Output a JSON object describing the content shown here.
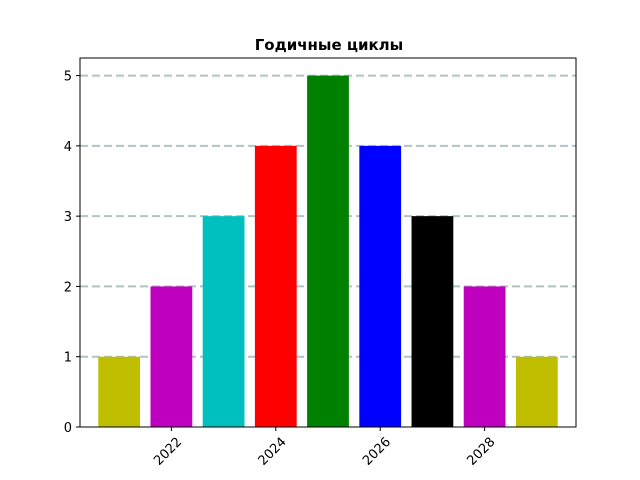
{
  "chart_data": {
    "type": "bar",
    "title": "Годичные циклы",
    "xlabel": "",
    "ylabel": "",
    "x": [
      2021,
      2022,
      2023,
      2024,
      2025,
      2026,
      2027,
      2028,
      2029
    ],
    "values": [
      1,
      2,
      3,
      4,
      5,
      4,
      3,
      2,
      1
    ],
    "colors": [
      "#bfbf00",
      "#bf00bf",
      "#00bfbf",
      "#ff0000",
      "#008000",
      "#0000ff",
      "#000000",
      "#bf00bf",
      "#bfbf00"
    ],
    "xlim": [
      2020.25,
      2029.75
    ],
    "ylim": [
      0,
      5.25
    ],
    "x_ticks": [
      "2022",
      "2024",
      "2026",
      "2028"
    ],
    "y_ticks": [
      "0",
      "1",
      "2",
      "3",
      "4",
      "5"
    ],
    "x_tick_rotation_deg": 45,
    "grid": {
      "axis": "y",
      "style": "dashed",
      "color": "#b0c4c4"
    },
    "legend": "none"
  }
}
